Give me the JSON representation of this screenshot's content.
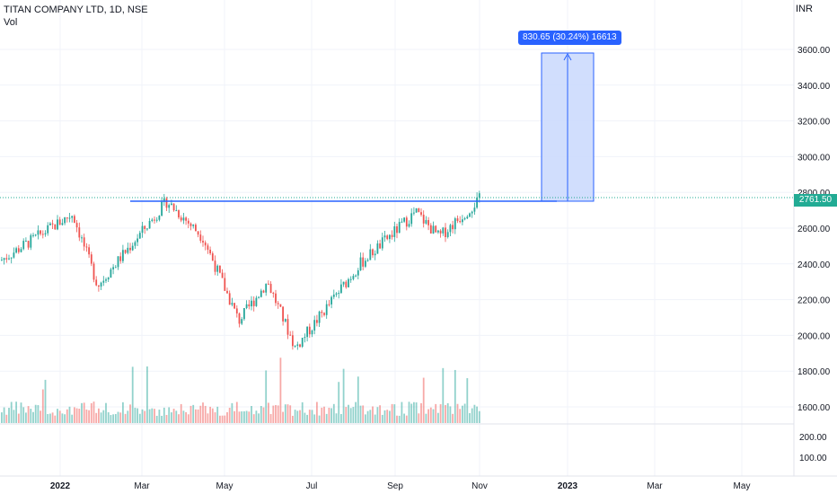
{
  "header": {
    "symbol_line": "TITAN COMPANY LTD, 1D, NSE",
    "volume_label": "Vol"
  },
  "price_axis": {
    "currency": "INR",
    "ticks": [
      "3600.00",
      "3400.00",
      "3200.00",
      "3000.00",
      "2800.00",
      "2600.00",
      "2400.00",
      "2200.00",
      "2000.00",
      "1800.00",
      "1600.00"
    ],
    "last_price": "2761.50"
  },
  "volume_axis": {
    "ticks": [
      "200.00",
      "100.00"
    ]
  },
  "time_axis": {
    "ticks": [
      {
        "label": "2022",
        "bold": true
      },
      {
        "label": "Mar",
        "bold": false
      },
      {
        "label": "May",
        "bold": false
      },
      {
        "label": "Jul",
        "bold": false
      },
      {
        "label": "Sep",
        "bold": false
      },
      {
        "label": "Nov",
        "bold": false
      },
      {
        "label": "2023",
        "bold": true
      },
      {
        "label": "Mar",
        "bold": false
      },
      {
        "label": "May",
        "bold": false
      }
    ]
  },
  "measure_tool": {
    "label": "830.65 (30.24%) 16613"
  },
  "colors": {
    "up": "#26a69a",
    "down": "#ef5350",
    "line": "#2962ff",
    "measure_fill": "#c7d6fd",
    "last_price": "#22ab94",
    "grid": "#f0f3fa"
  },
  "chart_data": {
    "type": "candlestick",
    "title": "TITAN COMPANY LTD, 1D, NSE",
    "price_range": [
      1500,
      3700
    ],
    "resistance_level": 2745,
    "target_level": 3577,
    "last_price": 2761.5,
    "measure_change": 830.65,
    "measure_change_pct": 30.24,
    "key_points": [
      {
        "period": "Dec 2021",
        "close": 2420
      },
      {
        "period": "early Jan 2022",
        "close": 2680
      },
      {
        "period": "late Jan 2022",
        "close": 2280
      },
      {
        "period": "mid Mar 2022",
        "close": 2750
      },
      {
        "period": "Apr 2022",
        "close": 2550
      },
      {
        "period": "mid May 2022",
        "close": 2080
      },
      {
        "period": "early Jun 2022",
        "close": 2300
      },
      {
        "period": "late Jun 2022",
        "close": 1930
      },
      {
        "period": "Jul 2022",
        "close": 2150
      },
      {
        "period": "Aug 2022",
        "close": 2400
      },
      {
        "period": "Sep 2022",
        "close": 2690
      },
      {
        "period": "early Oct 2022",
        "close": 2550
      },
      {
        "period": "end Oct 2022",
        "close": 2761.5
      }
    ]
  }
}
